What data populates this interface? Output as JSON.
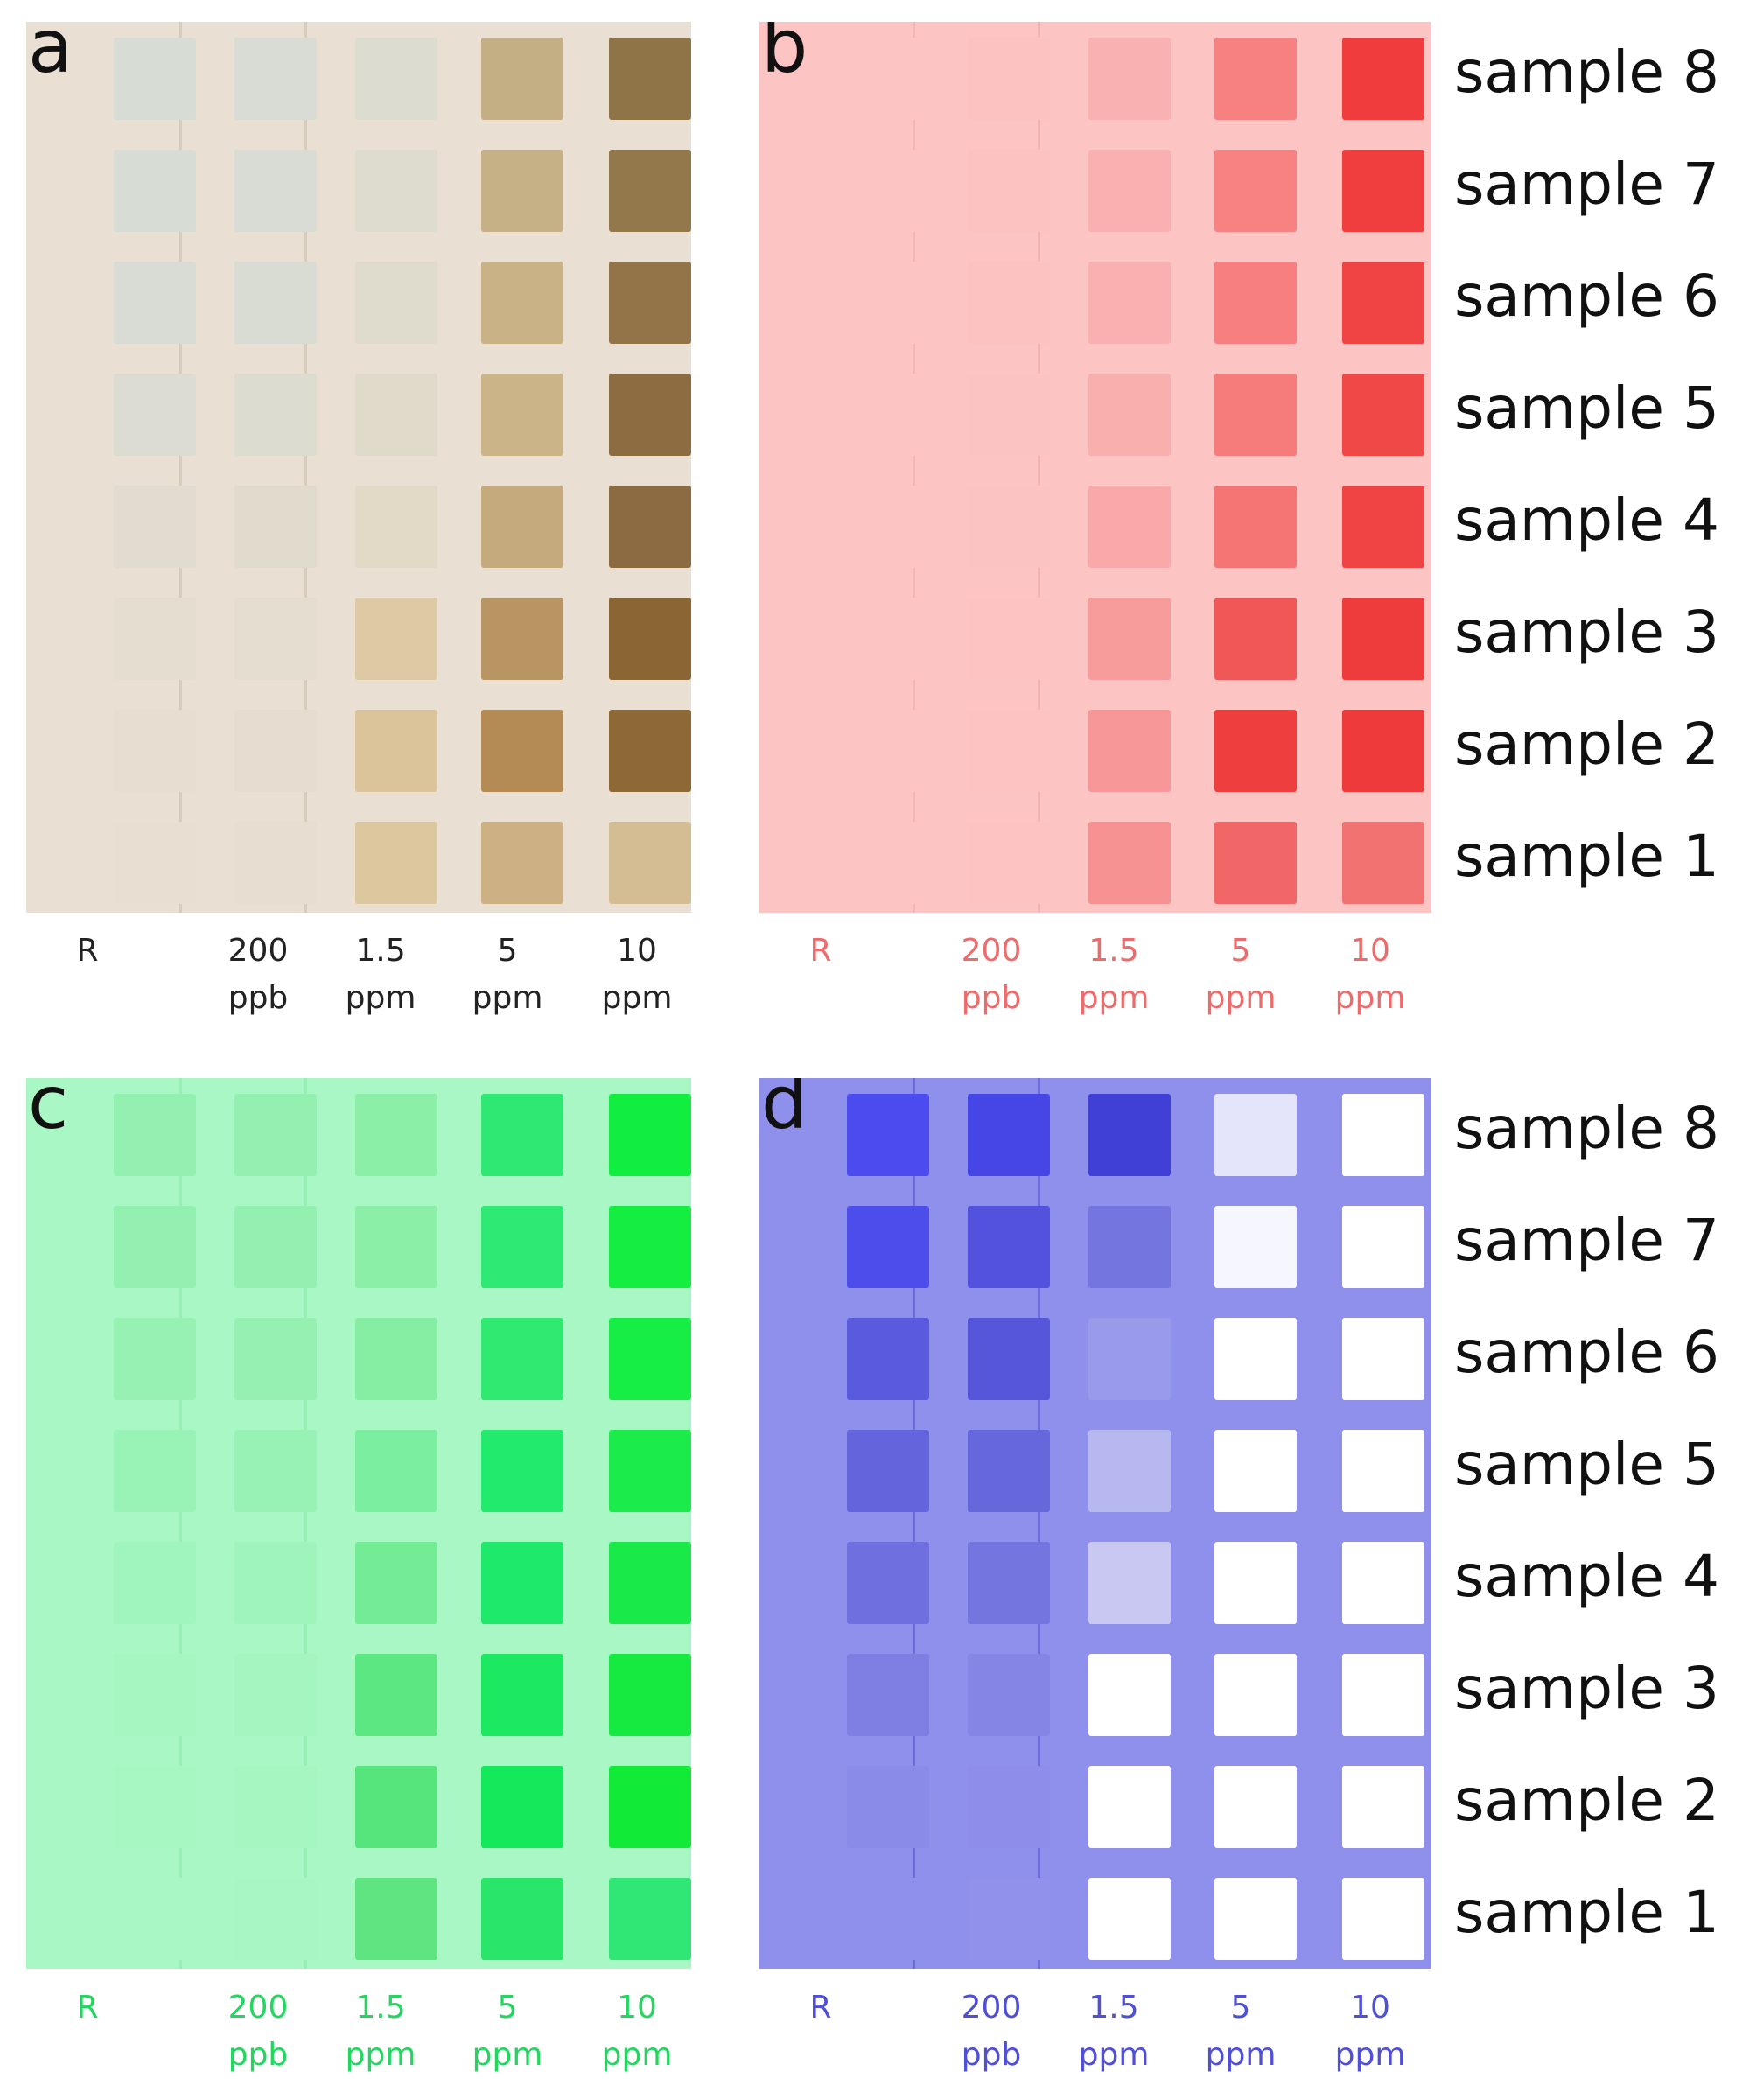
{
  "panels": [
    {
      "letter": "a",
      "colors": {
        "background": "#e9e0d3",
        "divider": "#d8cdbc",
        "label": "#222222"
      },
      "columns": [
        {
          "label_top": "R",
          "label_bottom": ""
        },
        {
          "label_top": "200",
          "label_bottom": "ppb"
        },
        {
          "label_top": "1.5",
          "label_bottom": "ppm"
        },
        {
          "label_top": "5",
          "label_bottom": "ppm"
        },
        {
          "label_top": "10",
          "label_bottom": "ppm"
        }
      ],
      "patch_colors": [
        [
          "#d7dcd5",
          "#d8dcd4",
          "#dcdcd0",
          "#c4ae84",
          "#8f7447"
        ],
        [
          "#d7dcd5",
          "#d8dcd4",
          "#dddccf",
          "#c6b186",
          "#93784c"
        ],
        [
          "#d8dcd4",
          "#d9dcd3",
          "#dfdbcd",
          "#c9b286",
          "#927448"
        ],
        [
          "#dcdcd2",
          "#dcdcd1",
          "#e0dacb",
          "#ccb489",
          "#8d6c42"
        ],
        [
          "#e1dccf",
          "#e0dbcd",
          "#e2d9c6",
          "#c5aa7d",
          "#8d6b42"
        ],
        [
          "#e5ddd0",
          "#e5ddcf",
          "#ddcaa5",
          "#b99563",
          "#8b6533"
        ],
        [
          "#e7ded1",
          "#e6ddd0",
          "#dbc499",
          "#b48b55",
          "#8e6835"
        ],
        [
          "#e8dfd2",
          "#e7ded1",
          "#dcc89f",
          "#cdb084",
          "#d5bd93"
        ]
      ]
    },
    {
      "letter": "b",
      "colors": {
        "background": "#fdc4c4",
        "divider": "#f4b4b4",
        "label": "#ef6b6b"
      },
      "columns": [
        {
          "label_top": "R",
          "label_bottom": ""
        },
        {
          "label_top": "200",
          "label_bottom": "ppb"
        },
        {
          "label_top": "1.5",
          "label_bottom": "ppm"
        },
        {
          "label_top": "5",
          "label_bottom": "ppm"
        },
        {
          "label_top": "10",
          "label_bottom": "ppm"
        }
      ],
      "patch_colors": [
        [
          "#fdc4c4",
          "#fcc2c2",
          "#fab1b1",
          "#f78080",
          "#f03c3c"
        ],
        [
          "#fdc4c4",
          "#fcc2c2",
          "#fab0b0",
          "#f78282",
          "#f03e3e"
        ],
        [
          "#fdc4c4",
          "#fcc2c2",
          "#fab0b0",
          "#f77f7f",
          "#f04343"
        ],
        [
          "#fdc4c4",
          "#fcc3c3",
          "#faafaf",
          "#f67c7c",
          "#f04747"
        ],
        [
          "#fdc4c4",
          "#fcc3c3",
          "#f9a9a9",
          "#f57575",
          "#f04444"
        ],
        [
          "#fdc4c4",
          "#fdc3c3",
          "#f89b9b",
          "#f05757",
          "#ee3b3b"
        ],
        [
          "#fdc4c4",
          "#fdc3c3",
          "#f79797",
          "#ee3e3e",
          "#ee3a3a"
        ],
        [
          "#fdc4c4",
          "#fdc3c3",
          "#f69292",
          "#f16767",
          "#f27272"
        ]
      ]
    },
    {
      "letter": "c",
      "colors": {
        "background": "#a8f7c4",
        "divider": "#96eeb2",
        "label": "#22d660"
      },
      "columns": [
        {
          "label_top": "R",
          "label_bottom": ""
        },
        {
          "label_top": "200",
          "label_bottom": "ppb"
        },
        {
          "label_top": "1.5",
          "label_bottom": "ppm"
        },
        {
          "label_top": "5",
          "label_bottom": "ppm"
        },
        {
          "label_top": "10",
          "label_bottom": "ppm"
        }
      ],
      "patch_colors": [
        [
          "#93f0b0",
          "#93f0b0",
          "#8cefa8",
          "#2ee873",
          "#12ee3f"
        ],
        [
          "#94f0b0",
          "#94f0b0",
          "#8cefa8",
          "#2ee973",
          "#13ee40"
        ],
        [
          "#96f1b2",
          "#95f0b1",
          "#85eea2",
          "#2fe971",
          "#16ed45"
        ],
        [
          "#9af3b6",
          "#99f2b5",
          "#7ceea0",
          "#22ea6c",
          "#1bec4c"
        ],
        [
          "#a0f5bc",
          "#9ff4bb",
          "#74ec96",
          "#1fe96a",
          "#1ae94a"
        ],
        [
          "#a5f6c1",
          "#a4f5c0",
          "#5de782",
          "#1ce862",
          "#16e93f"
        ],
        [
          "#a7f7c3",
          "#a6f6c2",
          "#56e57d",
          "#14e95b",
          "#11ea36"
        ],
        [
          "#a8f7c4",
          "#a7f6c3",
          "#5ee582",
          "#29e66a",
          "#30e674"
        ]
      ]
    },
    {
      "letter": "d",
      "colors": {
        "background": "#8f8fec",
        "divider": "#6b6bd7",
        "label": "#4f4fd8"
      },
      "columns": [
        {
          "label_top": "R",
          "label_bottom": ""
        },
        {
          "label_top": "200",
          "label_bottom": "ppb"
        },
        {
          "label_top": "1.5",
          "label_bottom": "ppm"
        },
        {
          "label_top": "5",
          "label_bottom": "ppm"
        },
        {
          "label_top": "10",
          "label_bottom": "ppm"
        }
      ],
      "patch_colors": [
        [
          "#4b4bef",
          "#4646e6",
          "#4040d6",
          "#e4e4fb",
          "#ffffff"
        ],
        [
          "#4d4deb",
          "#5252de",
          "#7575df",
          "#f6f6fe",
          "#ffffff"
        ],
        [
          "#5a5adf",
          "#5656db",
          "#9a9aea",
          "#ffffff",
          "#ffffff"
        ],
        [
          "#6464dd",
          "#6767dc",
          "#b8b8f1",
          "#ffffff",
          "#ffffff"
        ],
        [
          "#6f6fdf",
          "#7575e0",
          "#c8c8f3",
          "#ffffff",
          "#ffffff"
        ],
        [
          "#7f7fe3",
          "#8585e6",
          "#ffffff",
          "#ffffff",
          "#ffffff"
        ],
        [
          "#8a8ae8",
          "#8e8eea",
          "#ffffff",
          "#ffffff",
          "#ffffff"
        ],
        [
          "#8f8fec",
          "#9191ec",
          "#ffffff",
          "#ffffff",
          "#ffffff"
        ]
      ]
    }
  ],
  "sample_labels_top": [
    "sample 8",
    "sample 7",
    "sample 6",
    "sample 5",
    "sample 4",
    "sample 3",
    "sample 2",
    "sample 1"
  ],
  "sample_labels_bottom": [
    "sample 8",
    "sample 7",
    "sample 6",
    "sample 5",
    "sample 4",
    "sample 3",
    "sample 2",
    "sample 1"
  ]
}
